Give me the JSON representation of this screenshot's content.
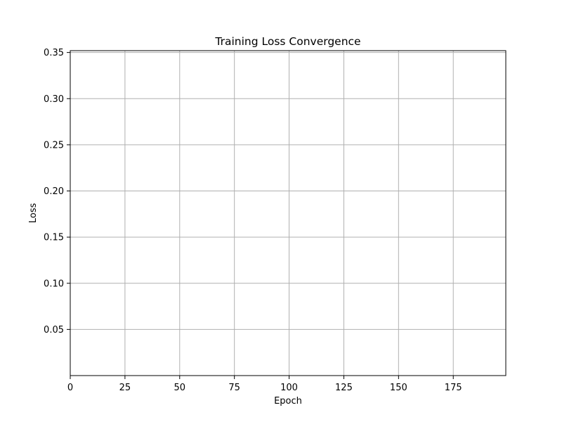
{
  "chart_data": {
    "type": "line",
    "title": "Training Loss Convergence",
    "xlabel": "Epoch",
    "ylabel": "Loss",
    "xlim": [
      0,
      199
    ],
    "ylim": [
      0.0,
      0.352
    ],
    "x_ticks": [
      0,
      25,
      50,
      75,
      100,
      125,
      150,
      175
    ],
    "x_tick_labels": [
      "0",
      "25",
      "50",
      "75",
      "100",
      "125",
      "150",
      "175"
    ],
    "y_ticks": [
      0.05,
      0.1,
      0.15,
      0.2,
      0.25,
      0.3,
      0.35
    ],
    "y_tick_labels": [
      "0.05",
      "0.10",
      "0.15",
      "0.20",
      "0.25",
      "0.30",
      "0.35"
    ],
    "grid": true,
    "series": [],
    "colors": {
      "grid": "#b0b0b0",
      "axes": "#000000",
      "background": "#ffffff"
    }
  }
}
